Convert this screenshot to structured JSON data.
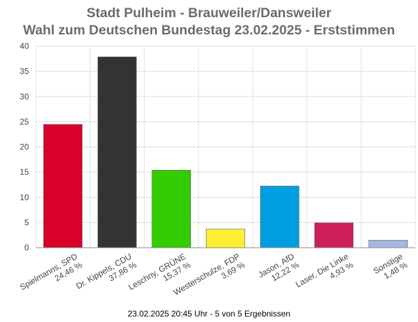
{
  "chart_data": {
    "type": "bar",
    "title": "Stadt Pulheim - Brauweiler/Dansweiler",
    "subtitle": "Wahl zum Deutschen Bundestag 23.02.2025  - Erststimmen",
    "categories": [
      {
        "name": "Spielmanns, SPD",
        "pct": "24,46 %"
      },
      {
        "name": "Dr. Kippels, CDU",
        "pct": "37,86 %"
      },
      {
        "name": "Leschny, GRÜNE",
        "pct": "15,37 %"
      },
      {
        "name": "Westerschulze, FDP",
        "pct": "3,69 %"
      },
      {
        "name": "Jason, AfD",
        "pct": "12,22 %"
      },
      {
        "name": "Laser, Die Linke",
        "pct": "4,93 %"
      },
      {
        "name": "Sonstige",
        "pct": "1,48 %"
      }
    ],
    "values": [
      24.46,
      37.86,
      15.37,
      3.69,
      12.22,
      4.93,
      1.48
    ],
    "colors": [
      "#d9002c",
      "#333333",
      "#33cc00",
      "#ffee33",
      "#009ee0",
      "#cc1f5c",
      "#a3b8e0"
    ],
    "ylim": [
      0,
      40
    ],
    "yticks": [
      "0",
      "5",
      "10",
      "15",
      "20",
      "25",
      "30",
      "35",
      "40"
    ],
    "grid": true,
    "footer": "23.02.2025 20:45 Uhr - 5 von 5 Ergebnissen"
  }
}
